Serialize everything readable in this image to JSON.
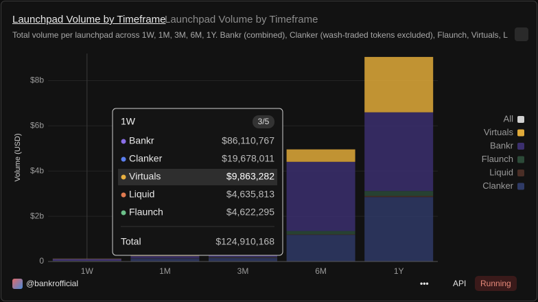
{
  "header": {
    "title": "Launchpad Volume by Timeframe",
    "subtitle": "Launchpad Volume by Timeframe",
    "description": "Total volume per launchpad across 1W, 1M, 3M, 6M, 1Y. Bankr (combined), Clanker (wash-traded tokens excluded), Flaunch, Virtuals, Li"
  },
  "chart_data": {
    "type": "stacked_bar",
    "y_label": "Volume (USD)",
    "categories": [
      "1W",
      "1M",
      "3M",
      "6M",
      "1Y"
    ],
    "series": [
      {
        "name": "Clanker",
        "color": "#2f3a66",
        "values": [
          19678011,
          120000000,
          150000000,
          1180000000,
          2850000000
        ]
      },
      {
        "name": "Liquid",
        "color": "#4a2e26",
        "values": [
          4635813,
          10000000,
          20000000,
          20000000,
          50000000
        ]
      },
      {
        "name": "Flaunch",
        "color": "#2c4a38",
        "values": [
          4622295,
          10000000,
          20000000,
          150000000,
          220000000
        ]
      },
      {
        "name": "Bankr",
        "color": "#3b2f6e",
        "values": [
          86110767,
          100000000,
          110000000,
          3060000000,
          3480000000
        ]
      },
      {
        "name": "Virtuals",
        "color": "#e0aa3a",
        "values": [
          9863282,
          10000000,
          10000000,
          550000000,
          2450000000
        ]
      }
    ],
    "legend_all": "All",
    "legend": "right",
    "ylim": [
      0,
      9200000000
    ],
    "yticks": [
      0,
      {
        "value": 2000000000,
        "label": "$2b"
      },
      {
        "value": 4000000000,
        "label": "$4b"
      },
      {
        "value": 6000000000,
        "label": "$6b"
      },
      {
        "value": 8000000000,
        "label": "$8b"
      }
    ],
    "grid": true
  },
  "tooltip": {
    "title": "1W",
    "page": "3/5",
    "highlight": 2,
    "rows": [
      {
        "name": "Bankr",
        "value": "$86,110,767",
        "color": "#8b6fe8"
      },
      {
        "name": "Clanker",
        "value": "$19,678,011",
        "color": "#5b7ff0"
      },
      {
        "name": "Virtuals",
        "value": "$9,863,282",
        "color": "#e8b040"
      },
      {
        "name": "Liquid",
        "value": "$4,635,813",
        "color": "#e07a50"
      },
      {
        "name": "Flaunch",
        "value": "$4,622,295",
        "color": "#6cc08a"
      }
    ],
    "total_label": "Total",
    "total": "$124,910,168"
  },
  "footer": {
    "owner": "@bankrofficial",
    "api": "API",
    "status": "Running"
  }
}
